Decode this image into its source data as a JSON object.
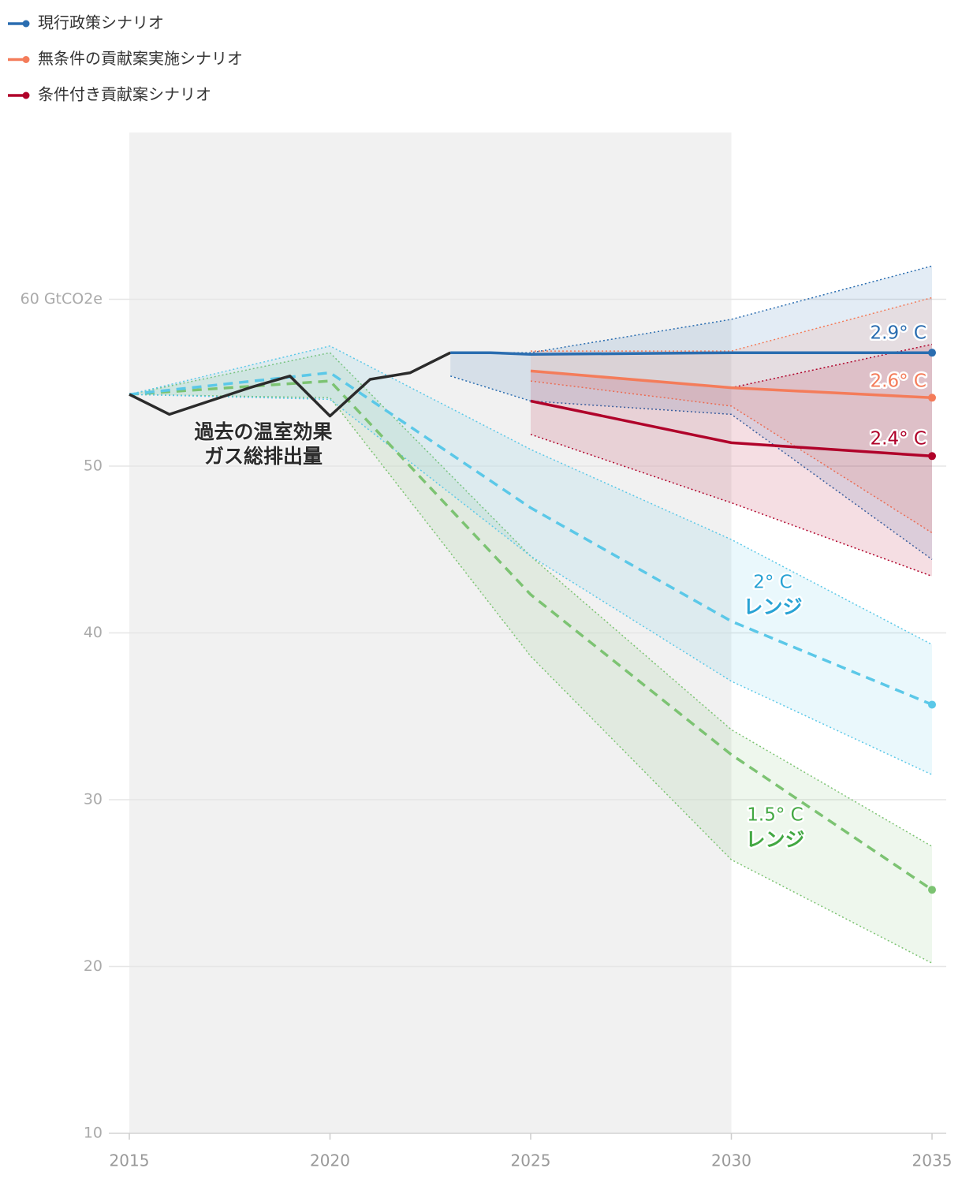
{
  "chart_data": {
    "type": "line",
    "xlim": [
      2015,
      2035
    ],
    "xticks": [
      2015,
      2020,
      2025,
      2030,
      2035
    ],
    "ylim": [
      10,
      70
    ],
    "yticks": [
      10,
      20,
      30,
      40,
      50,
      {
        "value": 60,
        "label": "60 GtCO2e"
      }
    ],
    "grid": true,
    "shaded_x": [
      2015,
      2030
    ],
    "legend": "top-left",
    "series": [
      {
        "label": "過去の温室効果ガス総排出量",
        "color": "#2b2b2b",
        "x": [
          2015,
          2016,
          2017,
          2018,
          2019,
          2020,
          2021,
          2022,
          2023
        ],
        "values": [
          54.3,
          53.1,
          53.9,
          54.7,
          55.4,
          53.0,
          55.2,
          55.6,
          56.8
        ]
      },
      {
        "name": "現行政策シナリオ",
        "label": "2.9° C",
        "color": "#2a6db0",
        "x": [
          2023,
          2024,
          2025,
          2030,
          2035
        ],
        "values": [
          56.8,
          56.8,
          56.7,
          56.8,
          56.8
        ],
        "band": {
          "x": [
            2023,
            2025,
            2030,
            2035
          ],
          "upper": [
            56.8,
            56.8,
            58.8,
            62.0
          ],
          "lower": [
            55.4,
            53.9,
            53.1,
            44.4
          ]
        }
      },
      {
        "name": "無条件の貢献案実施シナリオ",
        "label": "2.6° C",
        "color": "#f47c5a",
        "x": [
          2025,
          2030,
          2035
        ],
        "values": [
          55.7,
          54.7,
          54.1
        ],
        "band": {
          "x": [
            2025,
            2030,
            2035
          ],
          "upper": [
            56.9,
            56.9,
            60.1
          ],
          "lower": [
            55.1,
            53.6,
            46.0
          ]
        }
      },
      {
        "name": "条件付き貢献案シナリオ",
        "label": "2.4° C",
        "color": "#b0022a",
        "x": [
          2025,
          2030,
          2035
        ],
        "values": [
          53.9,
          51.4,
          50.6
        ],
        "band": {
          "x": [
            2025,
            2030,
            2035
          ],
          "upper": [
            55.7,
            54.7,
            57.3
          ],
          "lower": [
            51.9,
            47.8,
            43.4
          ]
        }
      },
      {
        "label": "2° C",
        "sublabel": "レンジ",
        "color": "#5bc8e8",
        "label_color": "#27a2d4",
        "style": "dashed",
        "x": [
          2015,
          2020,
          2025,
          2030,
          2035
        ],
        "values": [
          54.3,
          55.6,
          47.5,
          40.7,
          35.7
        ],
        "band": {
          "x": [
            2015,
            2020,
            2025,
            2030,
            2035
          ],
          "upper": [
            54.3,
            57.2,
            51.0,
            45.6,
            39.3
          ],
          "lower": [
            54.3,
            54.0,
            44.6,
            37.1,
            31.5
          ]
        }
      },
      {
        "label": "1.5° C",
        "sublabel": "レンジ",
        "color": "#7cc372",
        "label_color": "#43a843",
        "style": "dashed",
        "x": [
          2015,
          2020,
          2025,
          2030,
          2035
        ],
        "values": [
          54.3,
          55.1,
          42.3,
          32.7,
          24.6
        ],
        "band": {
          "x": [
            2015,
            2020,
            2025,
            2030,
            2035
          ],
          "upper": [
            54.3,
            56.8,
            44.6,
            34.2,
            27.2
          ],
          "lower": [
            54.3,
            54.1,
            38.6,
            26.4,
            20.2
          ]
        }
      }
    ]
  }
}
